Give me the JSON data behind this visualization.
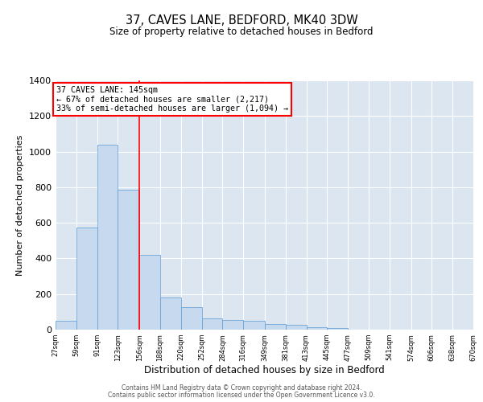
{
  "title": "37, CAVES LANE, BEDFORD, MK40 3DW",
  "subtitle": "Size of property relative to detached houses in Bedford",
  "xlabel": "Distribution of detached houses by size in Bedford",
  "ylabel": "Number of detached properties",
  "bar_color": "#c6d9ef",
  "bar_edge_color": "#5b9bd5",
  "background_color": "#dce6f1",
  "grid_color": "#ffffff",
  "annotation_line_color": "red",
  "annotation_text": "37 CAVES LANE: 145sqm\n← 67% of detached houses are smaller (2,217)\n33% of semi-detached houses are larger (1,094) →",
  "bin_edges": [
    27,
    59,
    91,
    123,
    156,
    188,
    220,
    252,
    284,
    316,
    349,
    381,
    413,
    445,
    477,
    509,
    541,
    574,
    606,
    638,
    670
  ],
  "bin_labels": [
    "27sqm",
    "59sqm",
    "91sqm",
    "123sqm",
    "156sqm",
    "188sqm",
    "220sqm",
    "252sqm",
    "284sqm",
    "316sqm",
    "349sqm",
    "381sqm",
    "413sqm",
    "445sqm",
    "477sqm",
    "509sqm",
    "541sqm",
    "574sqm",
    "606sqm",
    "638sqm",
    "670sqm"
  ],
  "bar_heights": [
    50,
    575,
    1040,
    785,
    420,
    180,
    125,
    65,
    55,
    50,
    30,
    25,
    15,
    8,
    0,
    0,
    0,
    0,
    0,
    0
  ],
  "ylim": [
    0,
    1400
  ],
  "yticks": [
    0,
    200,
    400,
    600,
    800,
    1000,
    1200,
    1400
  ],
  "footer1": "Contains HM Land Registry data © Crown copyright and database right 2024.",
  "footer2": "Contains public sector information licensed under the Open Government Licence v3.0."
}
